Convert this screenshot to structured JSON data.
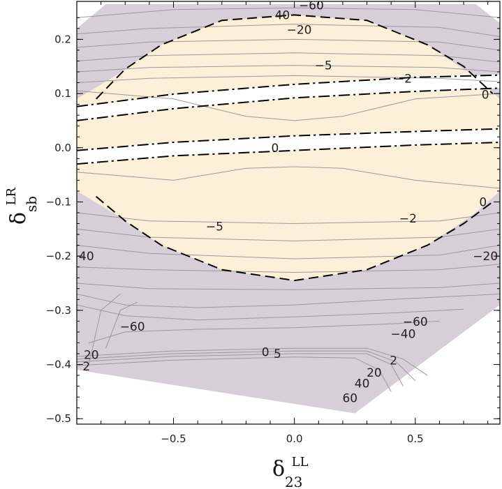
{
  "chart_data": {
    "type": "contour",
    "title": "",
    "xlabel": {
      "symbol": "δ",
      "superscript": "LL",
      "subscript": "23"
    },
    "ylabel": {
      "symbol": "δ",
      "superscript": "LR",
      "subscript": "sb"
    },
    "xlim": [
      -0.9,
      0.85
    ],
    "ylim": [
      -0.51,
      0.27
    ],
    "xticks": [
      -0.5,
      0.0,
      0.5
    ],
    "xtick_labels": [
      "−0.5",
      "0.0",
      "0.5"
    ],
    "yticks": [
      0.2,
      0.1,
      0.0,
      -0.1,
      -0.2,
      -0.3,
      -0.4,
      -0.5
    ],
    "ytick_labels": [
      "0.2",
      "0.1",
      "0.0",
      "−0.1",
      "−0.2",
      "−0.3",
      "−0.4",
      "−0.5"
    ],
    "grid": false,
    "colors": {
      "outer_region": "#d8ced8",
      "inner_region": "#fdf0d8",
      "excluded": "#ffffff",
      "contour": "#999999",
      "boundary": "#000000"
    },
    "regions": [
      {
        "name": "outer",
        "color": "#d8ced8",
        "polygon": [
          [
            -0.9,
            0.22
          ],
          [
            -0.78,
            0.265
          ],
          [
            0.75,
            0.265
          ],
          [
            0.85,
            0.23
          ],
          [
            0.85,
            -0.29
          ],
          [
            0.25,
            -0.49
          ],
          [
            -0.9,
            -0.41
          ]
        ]
      },
      {
        "name": "inner",
        "color": "#fdf0d8",
        "polygon": [
          [
            -0.9,
            0.09
          ],
          [
            -0.75,
            0.13
          ],
          [
            -0.55,
            0.19
          ],
          [
            -0.3,
            0.235
          ],
          [
            0.0,
            0.245
          ],
          [
            0.3,
            0.235
          ],
          [
            0.55,
            0.19
          ],
          [
            0.75,
            0.13
          ],
          [
            0.85,
            0.09
          ],
          [
            0.85,
            -0.08
          ],
          [
            0.75,
            -0.12
          ],
          [
            0.55,
            -0.18
          ],
          [
            0.3,
            -0.225
          ],
          [
            0.0,
            -0.245
          ],
          [
            -0.3,
            -0.225
          ],
          [
            -0.55,
            -0.18
          ],
          [
            -0.75,
            -0.12
          ],
          [
            -0.9,
            -0.08
          ]
        ]
      },
      {
        "name": "gap-upper",
        "color": "#ffffff",
        "polygon": [
          [
            -0.9,
            0.075
          ],
          [
            -0.5,
            0.098
          ],
          [
            0.0,
            0.117
          ],
          [
            0.5,
            0.13
          ],
          [
            0.85,
            0.135
          ],
          [
            0.85,
            0.11
          ],
          [
            0.5,
            0.105
          ],
          [
            0.0,
            0.092
          ],
          [
            -0.5,
            0.072
          ],
          [
            -0.9,
            0.05
          ]
        ]
      },
      {
        "name": "gap-lower",
        "color": "#ffffff",
        "polygon": [
          [
            -0.9,
            -0.005
          ],
          [
            -0.5,
            0.01
          ],
          [
            0.0,
            0.022
          ],
          [
            0.5,
            0.03
          ],
          [
            0.85,
            0.035
          ],
          [
            0.85,
            0.01
          ],
          [
            0.5,
            0.005
          ],
          [
            0.0,
            -0.005
          ],
          [
            -0.5,
            -0.015
          ],
          [
            -0.9,
            -0.03
          ]
        ]
      }
    ],
    "boundaries": [
      {
        "name": "upper-ellipse-boundary",
        "style": "dashed",
        "points": [
          [
            -0.82,
            0.09
          ],
          [
            -0.7,
            0.145
          ],
          [
            -0.55,
            0.19
          ],
          [
            -0.3,
            0.235
          ],
          [
            0.0,
            0.245
          ],
          [
            0.3,
            0.235
          ],
          [
            0.55,
            0.19
          ],
          [
            0.7,
            0.15
          ],
          [
            0.82,
            0.1
          ]
        ]
      },
      {
        "name": "lower-ellipse-boundary",
        "style": "dashed",
        "points": [
          [
            -0.82,
            -0.09
          ],
          [
            -0.7,
            -0.135
          ],
          [
            -0.55,
            -0.18
          ],
          [
            -0.3,
            -0.225
          ],
          [
            0.0,
            -0.245
          ],
          [
            0.3,
            -0.225
          ],
          [
            0.55,
            -0.18
          ],
          [
            0.7,
            -0.14
          ],
          [
            0.82,
            -0.1
          ]
        ]
      },
      {
        "name": "zero-line-upper-a",
        "style": "dashdot",
        "points": [
          [
            -0.9,
            0.076
          ],
          [
            -0.5,
            0.099
          ],
          [
            0.0,
            0.117
          ],
          [
            0.5,
            0.13
          ],
          [
            0.85,
            0.134
          ]
        ]
      },
      {
        "name": "zero-line-upper-b",
        "style": "dashdot",
        "points": [
          [
            -0.9,
            0.05
          ],
          [
            -0.5,
            0.072
          ],
          [
            0.0,
            0.092
          ],
          [
            0.5,
            0.104
          ],
          [
            0.85,
            0.11
          ]
        ]
      },
      {
        "name": "zero-line-lower-a",
        "style": "dashdot",
        "points": [
          [
            -0.9,
            -0.005
          ],
          [
            -0.5,
            0.01
          ],
          [
            0.0,
            0.022
          ],
          [
            0.5,
            0.03
          ],
          [
            0.85,
            0.035
          ]
        ]
      },
      {
        "name": "zero-line-lower-b",
        "style": "dashdot",
        "points": [
          [
            -0.9,
            -0.03
          ],
          [
            -0.5,
            -0.015
          ],
          [
            0.0,
            -0.005
          ],
          [
            0.5,
            0.005
          ],
          [
            0.85,
            0.01
          ]
        ]
      }
    ],
    "contours": [
      {
        "points": [
          [
            -0.9,
            0.24
          ],
          [
            -0.5,
            0.255
          ],
          [
            0.0,
            0.258
          ],
          [
            0.5,
            0.255
          ],
          [
            0.85,
            0.24
          ]
        ]
      },
      {
        "points": [
          [
            -0.9,
            0.21
          ],
          [
            -0.6,
            0.22
          ],
          [
            0.0,
            0.228
          ],
          [
            0.6,
            0.222
          ],
          [
            0.85,
            0.205
          ]
        ]
      },
      {
        "points": [
          [
            -0.9,
            0.185
          ],
          [
            -0.6,
            0.195
          ],
          [
            0.0,
            0.2
          ],
          [
            0.6,
            0.195
          ],
          [
            0.85,
            0.18
          ]
        ]
      },
      {
        "points": [
          [
            -0.9,
            0.16
          ],
          [
            -0.6,
            0.17
          ],
          [
            0.0,
            0.175
          ],
          [
            0.6,
            0.17
          ],
          [
            0.85,
            0.158
          ]
        ]
      },
      {
        "points": [
          [
            -0.9,
            0.14
          ],
          [
            -0.6,
            0.148
          ],
          [
            0.0,
            0.152
          ],
          [
            0.6,
            0.148
          ],
          [
            0.85,
            0.14
          ]
        ]
      },
      {
        "points": [
          [
            -0.9,
            0.12
          ],
          [
            -0.6,
            0.128
          ],
          [
            0.0,
            0.133
          ],
          [
            0.6,
            0.128
          ],
          [
            0.85,
            0.122
          ]
        ]
      },
      {
        "points": [
          [
            -0.9,
            0.105
          ],
          [
            -0.5,
            0.09
          ],
          [
            -0.2,
            0.058
          ],
          [
            0.0,
            0.05
          ],
          [
            0.2,
            0.058
          ],
          [
            0.5,
            0.09
          ],
          [
            0.85,
            0.1
          ]
        ]
      },
      {
        "points": [
          [
            -0.9,
            -0.045
          ],
          [
            -0.5,
            -0.06
          ],
          [
            -0.2,
            -0.038
          ],
          [
            0.0,
            -0.035
          ],
          [
            0.2,
            -0.038
          ],
          [
            0.5,
            -0.06
          ],
          [
            0.85,
            -0.075
          ]
        ]
      },
      {
        "points": [
          [
            -0.9,
            -0.12
          ],
          [
            -0.6,
            -0.135
          ],
          [
            0.0,
            -0.14
          ],
          [
            0.6,
            -0.135
          ],
          [
            0.85,
            -0.12
          ]
        ]
      },
      {
        "points": [
          [
            -0.9,
            -0.15
          ],
          [
            -0.6,
            -0.165
          ],
          [
            0.0,
            -0.172
          ],
          [
            0.6,
            -0.165
          ],
          [
            0.85,
            -0.15
          ]
        ]
      },
      {
        "points": [
          [
            -0.9,
            -0.18
          ],
          [
            -0.6,
            -0.195
          ],
          [
            0.0,
            -0.205
          ],
          [
            0.6,
            -0.198
          ],
          [
            0.85,
            -0.18
          ]
        ]
      },
      {
        "points": [
          [
            -0.9,
            -0.22
          ],
          [
            -0.6,
            -0.225
          ],
          [
            0.0,
            -0.23
          ],
          [
            0.6,
            -0.225
          ],
          [
            0.85,
            -0.215
          ]
        ]
      },
      {
        "points": [
          [
            -0.9,
            -0.25
          ],
          [
            -0.6,
            -0.26
          ],
          [
            0.0,
            -0.262
          ],
          [
            0.6,
            -0.258
          ],
          [
            0.85,
            -0.25
          ]
        ]
      },
      {
        "points": [
          [
            -0.9,
            -0.27
          ],
          [
            -0.7,
            -0.29
          ],
          [
            -0.4,
            -0.295
          ],
          [
            0.0,
            -0.29
          ],
          [
            0.4,
            -0.28
          ],
          [
            0.85,
            -0.27
          ]
        ]
      },
      {
        "points": [
          [
            -0.9,
            -0.29
          ],
          [
            -0.7,
            -0.31
          ],
          [
            -0.4,
            -0.318
          ],
          [
            0.0,
            -0.312
          ],
          [
            0.4,
            -0.305
          ],
          [
            0.7,
            -0.298
          ]
        ]
      },
      {
        "points": [
          [
            -0.85,
            -0.36
          ],
          [
            -0.7,
            -0.34
          ],
          [
            -0.4,
            -0.335
          ],
          [
            0.0,
            -0.332
          ],
          [
            0.4,
            -0.325
          ],
          [
            0.6,
            -0.32
          ]
        ]
      },
      {
        "points": [
          [
            -0.9,
            -0.385
          ],
          [
            -0.5,
            -0.375
          ],
          [
            0.0,
            -0.37
          ],
          [
            0.3,
            -0.37
          ],
          [
            0.45,
            -0.39
          ],
          [
            0.55,
            -0.42
          ]
        ]
      },
      {
        "points": [
          [
            -0.9,
            -0.39
          ],
          [
            -0.5,
            -0.38
          ],
          [
            0.0,
            -0.375
          ],
          [
            0.3,
            -0.375
          ],
          [
            0.42,
            -0.395
          ],
          [
            0.5,
            -0.43
          ]
        ]
      },
      {
        "points": [
          [
            -0.9,
            -0.395
          ],
          [
            -0.5,
            -0.385
          ],
          [
            0.0,
            -0.38
          ],
          [
            0.3,
            -0.38
          ],
          [
            0.4,
            -0.4
          ],
          [
            0.45,
            -0.44
          ]
        ]
      },
      {
        "points": [
          [
            -0.9,
            -0.402
          ],
          [
            -0.5,
            -0.392
          ],
          [
            0.0,
            -0.386
          ],
          [
            0.25,
            -0.388
          ],
          [
            0.35,
            -0.41
          ],
          [
            0.4,
            -0.45
          ]
        ]
      },
      {
        "points": [
          [
            -0.85,
            -0.4
          ],
          [
            -0.8,
            -0.3
          ],
          [
            -0.72,
            -0.27
          ]
        ]
      },
      {
        "points": [
          [
            -0.78,
            -0.37
          ],
          [
            -0.72,
            -0.3
          ],
          [
            -0.65,
            -0.285
          ]
        ]
      }
    ],
    "contour_labels": [
      {
        "text": "−60",
        "x": 0.07,
        "y": 0.263
      },
      {
        "text": "40",
        "x": -0.05,
        "y": 0.245
      },
      {
        "text": "−20",
        "x": 0.02,
        "y": 0.218
      },
      {
        "text": "−5",
        "x": 0.12,
        "y": 0.152
      },
      {
        "text": "−2",
        "x": 0.45,
        "y": 0.128
      },
      {
        "text": "0",
        "x": 0.79,
        "y": 0.098
      },
      {
        "text": "0",
        "x": -0.08,
        "y": 0.0
      },
      {
        "text": "0",
        "x": 0.78,
        "y": -0.1
      },
      {
        "text": "−2",
        "x": 0.47,
        "y": -0.13
      },
      {
        "text": "−5",
        "x": -0.33,
        "y": -0.145
      },
      {
        "text": "−20",
        "x": 0.79,
        "y": -0.2
      },
      {
        "text": "40",
        "x": -0.86,
        "y": -0.2
      },
      {
        "text": "−60",
        "x": -0.67,
        "y": -0.33
      },
      {
        "text": "−60",
        "x": 0.5,
        "y": -0.321
      },
      {
        "text": "−40",
        "x": 0.45,
        "y": -0.343
      },
      {
        "text": "20",
        "x": -0.84,
        "y": -0.382
      },
      {
        "text": "2",
        "x": -0.86,
        "y": -0.403
      },
      {
        "text": "0",
        "x": -0.12,
        "y": -0.377
      },
      {
        "text": "5",
        "x": -0.07,
        "y": -0.38
      },
      {
        "text": "2",
        "x": 0.41,
        "y": -0.392
      },
      {
        "text": "20",
        "x": 0.33,
        "y": -0.415
      },
      {
        "text": "40",
        "x": 0.28,
        "y": -0.435
      },
      {
        "text": "60",
        "x": 0.23,
        "y": -0.462
      }
    ]
  }
}
